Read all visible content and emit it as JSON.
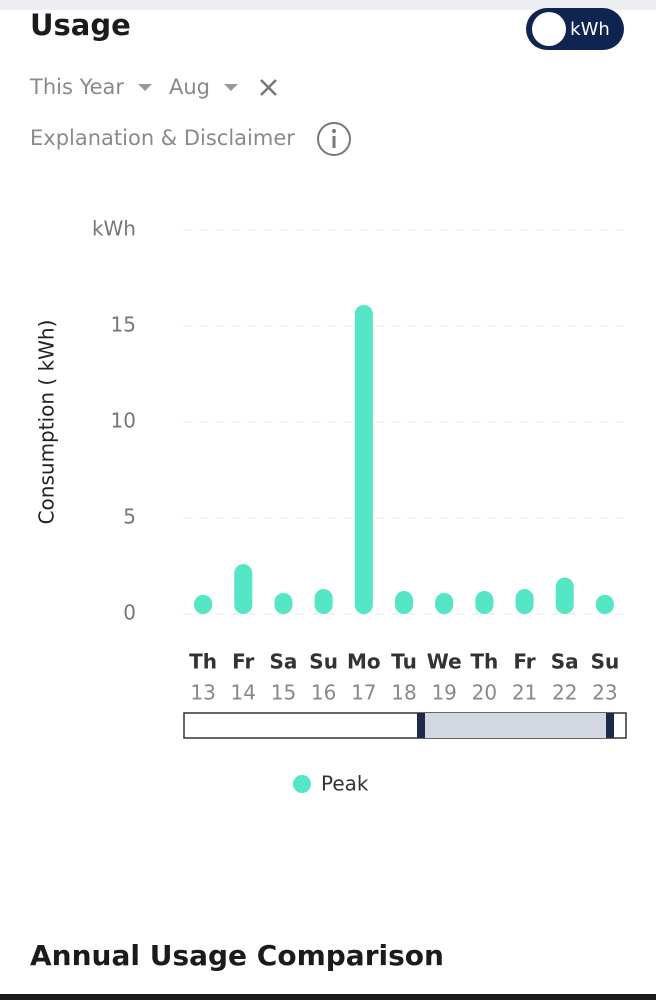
{
  "header": {
    "title": "Usage",
    "toggle": "kWh"
  },
  "filters": {
    "period": "This Year",
    "month": "Aug"
  },
  "disclaimer": "Explanation & Disclaimer",
  "chart_data": {
    "type": "bar",
    "y_label": "Consumption ( kWh)",
    "categories": [
      "Th",
      "Fr",
      "Sa",
      "Su",
      "Mo",
      "Tu",
      "We",
      "Th",
      "Fr",
      "Sa",
      "Su"
    ],
    "dates": [
      "13",
      "14",
      "15",
      "16",
      "17",
      "18",
      "19",
      "20",
      "21",
      "22",
      "23"
    ],
    "series": [
      {
        "name": "Peak",
        "color": "#55e6c6",
        "values": [
          1.0,
          2.6,
          1.1,
          1.3,
          16.1,
          1.2,
          1.1,
          1.2,
          1.3,
          1.9,
          1.0
        ]
      }
    ],
    "ylim": [
      0,
      20
    ],
    "yticks": [
      0,
      5,
      10,
      15,
      {
        "value": 20,
        "label": "kWh"
      }
    ],
    "grid": true
  },
  "footer": {
    "title": "Annual Usage Comparison"
  }
}
